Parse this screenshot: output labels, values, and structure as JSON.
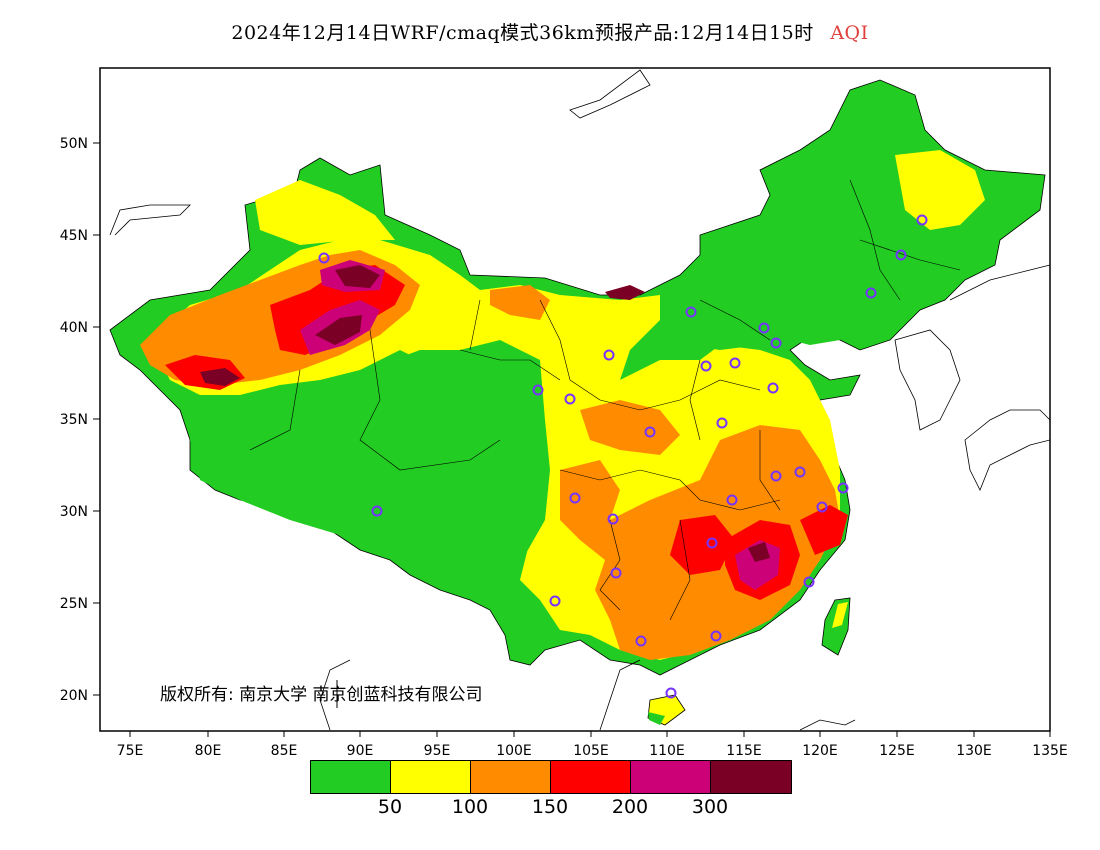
{
  "title": {
    "main": "2024年12月14日WRF/cmaq模式36km预报产品:12月14日15时",
    "product": "AQI"
  },
  "axes": {
    "x_ticks": [
      "75E",
      "80E",
      "85E",
      "90E",
      "95E",
      "100E",
      "105E",
      "110E",
      "115E",
      "120E",
      "125E",
      "130E",
      "135E"
    ],
    "y_ticks": [
      "50N",
      "45N",
      "40N",
      "35N",
      "30N",
      "25N",
      "20N"
    ]
  },
  "legend": {
    "colors": [
      "#22cc22",
      "#ffff00",
      "#ff8c00",
      "#ff0000",
      "#cc0077",
      "#7a0025"
    ],
    "labels": [
      "50",
      "100",
      "150",
      "200",
      "300"
    ]
  },
  "copyright": "版权所有: 南京大学 南京创蓝科技有限公司",
  "colors": {
    "good": "#22cc22",
    "moderate": "#ffff00",
    "sensitive": "#ff8c00",
    "unhealthy": "#ff0000",
    "very_unhealthy": "#cc0077",
    "hazardous": "#7a0025",
    "station": "#7733ff"
  }
}
